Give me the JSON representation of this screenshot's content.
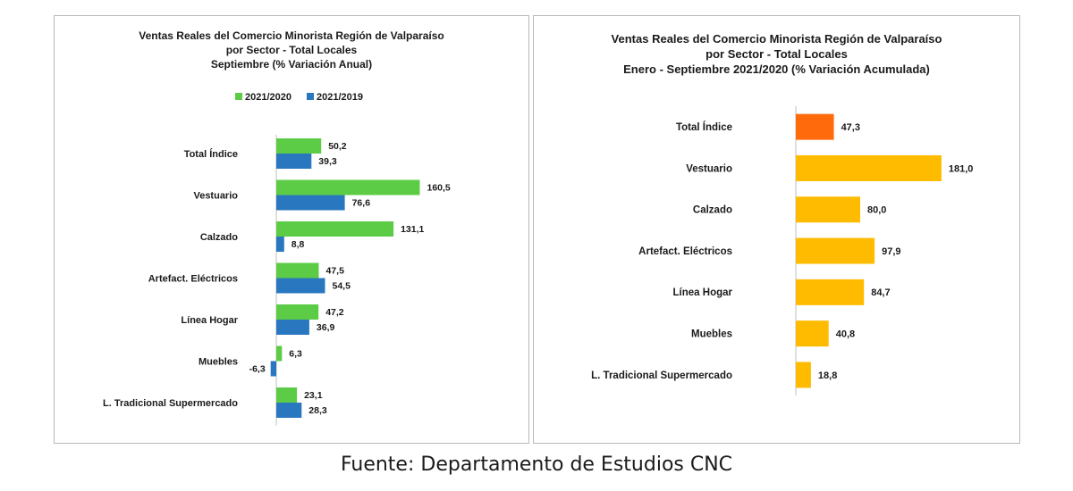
{
  "chart_data": [
    {
      "type": "bar",
      "orientation": "horizontal",
      "title_lines": [
        "Ventas Reales del Comercio Minorista Región de Valparaíso",
        "por Sector - Total Locales",
        "Septiembre (% Variación Anual)"
      ],
      "categories": [
        "Total Índice",
        "Vestuario",
        "Calzado",
        "Artefact. Eléctricos",
        "Línea Hogar",
        "Muebles",
        "L. Tradicional Supermercado"
      ],
      "series": [
        {
          "name": "2021/2020",
          "color": "#5ccc46",
          "values": [
            50.2,
            160.5,
            131.1,
            47.5,
            47.2,
            6.3,
            23.1
          ],
          "labels": [
            "50,2",
            "160,5",
            "131,1",
            "47,5",
            "47,2",
            "6,3",
            "23,1"
          ]
        },
        {
          "name": "2021/2019",
          "color": "#2877bf",
          "values": [
            39.3,
            76.6,
            8.8,
            54.5,
            36.9,
            -6.3,
            28.3
          ],
          "labels": [
            "39,3",
            "76,6",
            "8,8",
            "54,5",
            "36,9",
            "-6,3",
            "28,3"
          ]
        }
      ],
      "legend": "top",
      "grid": false,
      "xlim": [
        -8,
        180
      ]
    },
    {
      "type": "bar",
      "orientation": "horizontal",
      "title_lines": [
        "Ventas Reales del Comercio Minorista Región de Valparaíso",
        "por Sector  - Total Locales",
        "Enero - Septiembre 2021/2020 (% Variación Acumulada)"
      ],
      "categories": [
        "Total Índice",
        "Vestuario",
        "Calzado",
        "Artefact. Eléctricos",
        "Línea Hogar",
        "Muebles",
        "L. Tradicional Supermercado"
      ],
      "values": [
        47.3,
        181.0,
        80.0,
        97.9,
        84.7,
        40.8,
        18.8
      ],
      "labels": [
        "47,3",
        "181,0",
        "80,0",
        "97,9",
        "84,7",
        "40,8",
        "18,8"
      ],
      "colors": [
        "#ff6a0d",
        "#ffbb00",
        "#ffbb00",
        "#ffbb00",
        "#ffbb00",
        "#ffbb00",
        "#ffbb00"
      ],
      "grid": false,
      "xlim": [
        0,
        200
      ]
    }
  ],
  "source": "Fuente: Departamento de Estudios CNC"
}
